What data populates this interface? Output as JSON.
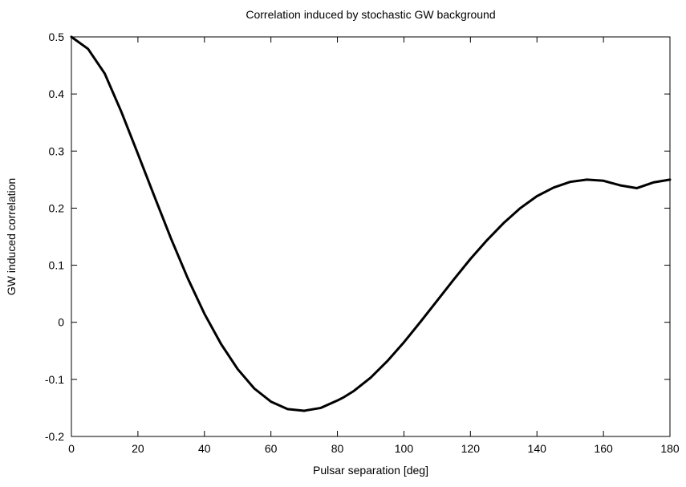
{
  "chart_data": {
    "type": "line",
    "title": "Correlation induced by stochastic GW background",
    "xlabel": "Pulsar separation [deg]",
    "ylabel": "GW induced correlation",
    "xlim": [
      0,
      180
    ],
    "ylim": [
      -0.2,
      0.5
    ],
    "xticks": [
      0,
      20,
      40,
      60,
      80,
      100,
      120,
      140,
      160,
      180
    ],
    "yticks": [
      0.5,
      0.4,
      0.3,
      0.2,
      0.1,
      0,
      -0.1,
      -0.2
    ],
    "xtick_labels": [
      "0",
      "20",
      "40",
      "60",
      "80",
      "100",
      "120",
      "140",
      "160",
      "180"
    ],
    "ytick_labels": [
      "0.5",
      "0.4",
      "0.3",
      "0.2",
      "0.1",
      "0",
      "-0.1",
      "-0.2"
    ],
    "grid": false,
    "line_color": "#000000",
    "series": [
      {
        "x": [
          0,
          5,
          10,
          15,
          20,
          25,
          30,
          35,
          40,
          45,
          50,
          55,
          60,
          65,
          70,
          75,
          80,
          82,
          85,
          90,
          95,
          100,
          105,
          110,
          115,
          120,
          125,
          130,
          135,
          140,
          145,
          150,
          155,
          160,
          165,
          170,
          175,
          180
        ],
        "y": [
          0.5,
          0.479,
          0.436,
          0.369,
          0.295,
          0.22,
          0.146,
          0.077,
          0.015,
          -0.038,
          -0.082,
          -0.116,
          -0.139,
          -0.152,
          -0.155,
          -0.15,
          -0.137,
          -0.131,
          -0.12,
          -0.097,
          -0.068,
          -0.035,
          0.001,
          0.038,
          0.075,
          0.111,
          0.144,
          0.174,
          0.2,
          0.221,
          0.236,
          0.246,
          0.25,
          0.248,
          0.24,
          0.235,
          0.245,
          0.25
        ]
      }
    ]
  }
}
